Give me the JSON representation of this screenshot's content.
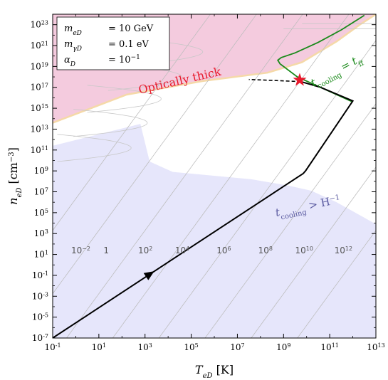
{
  "chart_data": {
    "type": "line",
    "xlabel_main": "T",
    "xlabel_sub": "eD",
    "xlabel_unit": " [K]",
    "ylabel_main": "n",
    "ylabel_sub": "eD",
    "ylabel_unit": " [cm",
    "ylabel_unit_sup": "−3",
    "ylabel_unit_end": "]",
    "x_scale": "log",
    "y_scale": "log",
    "xlim": [
      0.1,
      10000000000000.0
    ],
    "ylim": [
      1e-07,
      1e+24
    ],
    "x_ticks": [
      {
        "exp": "-1",
        "value": 0.1
      },
      {
        "exp": "1",
        "value": 10
      },
      {
        "exp": "3",
        "value": 1000
      },
      {
        "exp": "5",
        "value": 100000.0
      },
      {
        "exp": "7",
        "value": 10000000.0
      },
      {
        "exp": "9",
        "value": 1000000000.0
      },
      {
        "exp": "11",
        "value": 100000000000.0
      },
      {
        "exp": "13",
        "value": 10000000000000.0
      }
    ],
    "y_ticks": [
      {
        "exp": "-7",
        "value": 1e-07
      },
      {
        "exp": "-5",
        "value": 1e-05
      },
      {
        "exp": "-3",
        "value": 0.001
      },
      {
        "exp": "-1",
        "value": 0.1
      },
      {
        "exp": "1",
        "value": 10
      },
      {
        "exp": "3",
        "value": 1000
      },
      {
        "exp": "5",
        "value": 100000.0
      },
      {
        "exp": "7",
        "value": 10000000.0
      },
      {
        "exp": "9",
        "value": 1000000000.0
      },
      {
        "exp": "11",
        "value": 100000000000.0
      },
      {
        "exp": "13",
        "value": 10000000000000.0
      },
      {
        "exp": "15",
        "value": 1000000000000000.0
      },
      {
        "exp": "17",
        "value": 1e+17
      },
      {
        "exp": "19",
        "value": 1e+19
      },
      {
        "exp": "21",
        "value": 1e+21
      },
      {
        "exp": "23",
        "value": 1e+23
      }
    ],
    "tick_base": "10",
    "legend": {
      "placement": "top-left",
      "lines": [
        {
          "sym": "m",
          "sub": "eD",
          "eq": "= 10 GeV"
        },
        {
          "sym": "m",
          "sub": "γD",
          "eq": "= 0.1 eV"
        },
        {
          "sym": "α",
          "sub": "D",
          "eq": "= 10",
          "sup": "−1"
        }
      ]
    },
    "regions": {
      "optically_thick": {
        "label": "Optically thick",
        "color": "#f2c2d8",
        "boundary_log": [
          [
            -1,
            13.6
          ],
          [
            2.2,
            16.3
          ],
          [
            5.5,
            17.6
          ],
          [
            8.3,
            18.4
          ],
          [
            9.8,
            19.4
          ],
          [
            11.3,
            21.4
          ],
          [
            12.3,
            23.0
          ],
          [
            13,
            24
          ]
        ]
      },
      "cooling_slow": {
        "label_main": "t",
        "label_sub": "cooling",
        "label_rest": " > H",
        "label_sup": "−1",
        "color": "#e6e6fb",
        "boundary_log": [
          [
            -1,
            11.4
          ],
          [
            2.8,
            13.5
          ],
          [
            3.2,
            9.9
          ],
          [
            4.2,
            8.9
          ],
          [
            7.6,
            8.2
          ],
          [
            9.2,
            7.6
          ],
          [
            10.2,
            7.1
          ],
          [
            11.3,
            6.0
          ],
          [
            12.6,
            4.4
          ],
          [
            13,
            3.9
          ]
        ]
      }
    },
    "trajectory": {
      "color": "#000000",
      "solid_log": [
        [
          -1,
          -7
        ],
        [
          9.85,
          8.75
        ],
        [
          9.95,
          9.0
        ],
        [
          12.0,
          15.7
        ],
        [
          10.6,
          17.0
        ],
        [
          9.75,
          17.55
        ]
      ],
      "dashed_log": [
        [
          9.75,
          17.55
        ],
        [
          8.7,
          17.65
        ],
        [
          7.5,
          17.75
        ]
      ],
      "arrow_log": [
        3.4,
        -0.6
      ]
    },
    "cooling_equals_ff": {
      "label_main": "t",
      "label_sub": "cooling",
      "label_rest": " = t",
      "label_sub2": "ff",
      "color": "#1a8a1a",
      "curve_log": [
        [
          12.0,
          15.6
        ],
        [
          10.8,
          16.8
        ],
        [
          9.6,
          18.0
        ],
        [
          8.85,
          19.25
        ],
        [
          8.75,
          19.6
        ],
        [
          8.9,
          19.85
        ],
        [
          9.5,
          20.3
        ],
        [
          10.5,
          21.3
        ],
        [
          11.5,
          22.5
        ],
        [
          12.5,
          23.9
        ]
      ]
    },
    "star_log": [
      9.7,
      17.7
    ],
    "star_color": "#e8192c",
    "contour_labels": [
      {
        "base": "10",
        "exp": "−2",
        "x_log": -0.2,
        "y_log": 1.1
      },
      {
        "base": "1",
        "exp": "",
        "x_log": 1.2,
        "y_log": 1.1
      },
      {
        "base": "10",
        "exp": "2",
        "x_log": 2.7,
        "y_log": 1.1
      },
      {
        "base": "10",
        "exp": "4",
        "x_log": 4.3,
        "y_log": 1.1
      },
      {
        "base": "10",
        "exp": "6",
        "x_log": 6.1,
        "y_log": 1.1
      },
      {
        "base": "10",
        "exp": "8",
        "x_log": 7.9,
        "y_log": 1.1
      },
      {
        "base": "10",
        "exp": "10",
        "x_log": 9.5,
        "y_log": 1.1
      },
      {
        "base": "10",
        "exp": "12",
        "x_log": 11.2,
        "y_log": 1.1
      }
    ],
    "grid": false
  }
}
